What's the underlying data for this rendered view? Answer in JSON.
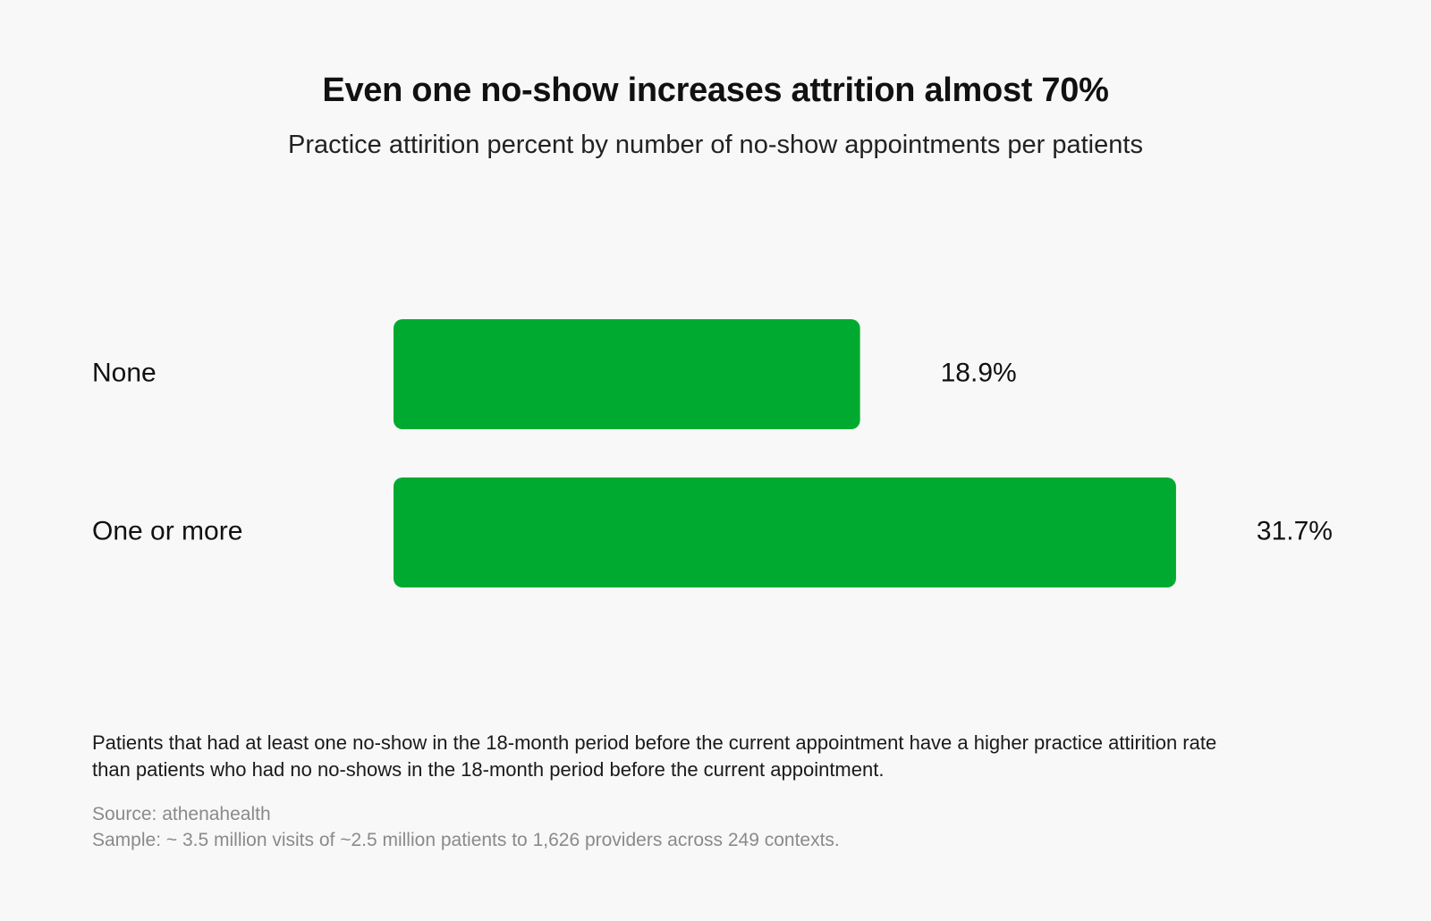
{
  "header": {
    "title": "Even one no-show increases attrition almost 70%",
    "subtitle": "Practice attirition percent by number of no-show appointments per patients"
  },
  "chart_data": {
    "type": "bar",
    "orientation": "horizontal",
    "categories": [
      "None",
      "One or more"
    ],
    "values": [
      18.9,
      31.7
    ],
    "value_labels": [
      "18.9%",
      "31.7%"
    ],
    "unit": "%",
    "title": "Even one no-show increases attrition almost 70%",
    "subtitle": "Practice attirition percent by number of no-show appointments per patients",
    "xlabel": "",
    "ylabel": "",
    "grid": false,
    "legend": "none",
    "bar_color": "#00aa30"
  },
  "footer": {
    "note": "Patients that had at least one no-show in the 18-month period before the current appointment have a higher practice attirition rate than patients who had no no-shows in the 18-month period before the current appointment.",
    "source": "Source: athenahealth",
    "sample": "Sample: ~ 3.5 million visits of ~2.5 million patients to 1,626 providers across 249 contexts."
  }
}
